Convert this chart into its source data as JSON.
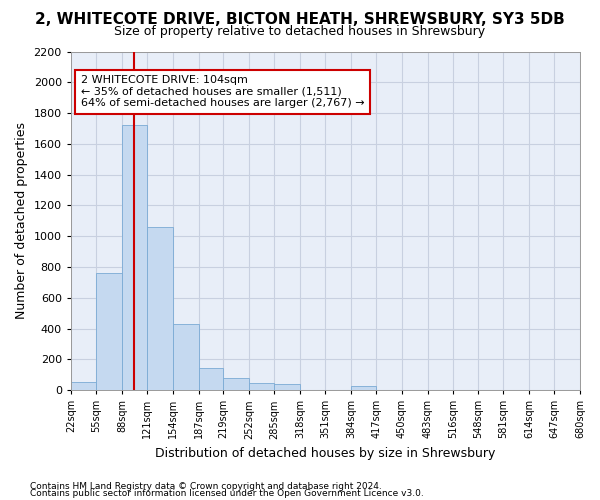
{
  "title": "2, WHITECOTE DRIVE, BICTON HEATH, SHREWSBURY, SY3 5DB",
  "subtitle": "Size of property relative to detached houses in Shrewsbury",
  "xlabel": "Distribution of detached houses by size in Shrewsbury",
  "ylabel": "Number of detached properties",
  "footnote1": "Contains HM Land Registry data © Crown copyright and database right 2024.",
  "footnote2": "Contains public sector information licensed under the Open Government Licence v3.0.",
  "annotation_line1": "2 WHITECOTE DRIVE: 104sqm",
  "annotation_line2": "← 35% of detached houses are smaller (1,511)",
  "annotation_line3": "64% of semi-detached houses are larger (2,767) →",
  "bar_edges": [
    22,
    55,
    88,
    121,
    154,
    187,
    219,
    252,
    285,
    318,
    351,
    384,
    417,
    450,
    483,
    516,
    548,
    581,
    614,
    647,
    680
  ],
  "bar_heights": [
    55,
    760,
    1720,
    1060,
    430,
    145,
    80,
    45,
    40,
    0,
    0,
    25,
    0,
    0,
    0,
    0,
    0,
    0,
    0,
    0
  ],
  "bar_color": "#c5d9f0",
  "bar_edgecolor": "#7aaad4",
  "grid_color": "#c8d0e0",
  "plot_bg_color": "#e8eef8",
  "fig_bg_color": "#ffffff",
  "vline_x": 104,
  "vline_color": "#cc0000",
  "annotation_box_edgecolor": "#cc0000",
  "ylim": [
    0,
    2200
  ],
  "yticks": [
    0,
    200,
    400,
    600,
    800,
    1000,
    1200,
    1400,
    1600,
    1800,
    2000,
    2200
  ],
  "title_fontsize": 11,
  "subtitle_fontsize": 9,
  "ylabel_fontsize": 9,
  "xlabel_fontsize": 9,
  "ytick_fontsize": 8,
  "xtick_fontsize": 7,
  "annotation_fontsize": 8,
  "footnote_fontsize": 6.5
}
